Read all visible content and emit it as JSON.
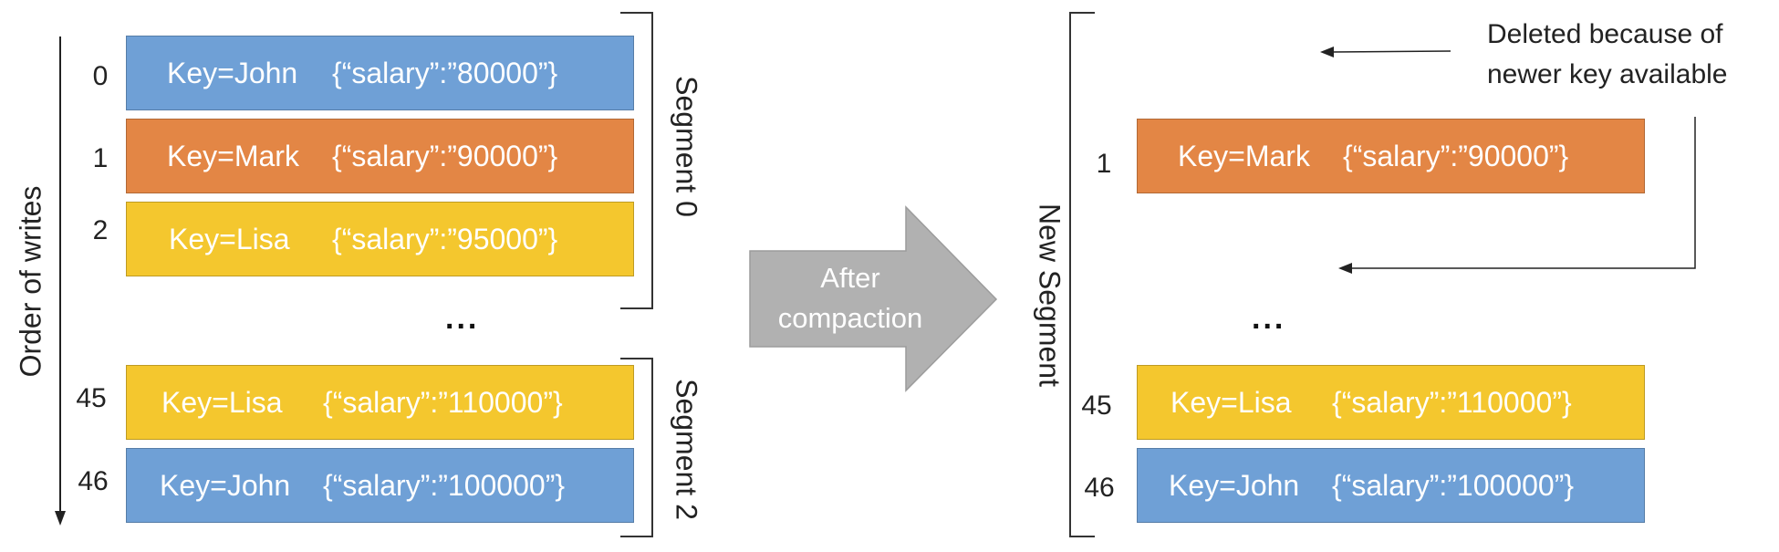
{
  "colors": {
    "blue": "#6fa0d6",
    "orange": "#e38645",
    "yellow": "#f4c72e",
    "arrow_gray": "#b1b1b1"
  },
  "axis_label": "Order of writes",
  "left": {
    "segment0_label": "Segment 0",
    "segment2_label": "Segment 2",
    "ellipsis": "...",
    "records": [
      {
        "index": "0",
        "key": "Key=John",
        "value": "{“salary”:”80000”}",
        "color": "blue"
      },
      {
        "index": "1",
        "key": "Key=Mark",
        "value": "{“salary”:”90000”}",
        "color": "orange"
      },
      {
        "index": "2",
        "key": "Key=Lisa",
        "value": "{“salary”:”95000”}",
        "color": "yellow"
      },
      {
        "index": "45",
        "key": "Key=Lisa",
        "value": "{“salary”:”110000”}",
        "color": "yellow"
      },
      {
        "index": "46",
        "key": "Key=John",
        "value": "{“salary”:”100000”}",
        "color": "blue"
      }
    ]
  },
  "compaction_arrow": {
    "line1": "After",
    "line2": "compaction"
  },
  "right": {
    "segment_label": "New Segment",
    "ellipsis": "...",
    "note_line1": "Deleted because of",
    "note_line2": "newer key available",
    "records": [
      {
        "index": "1",
        "key": "Key=Mark",
        "value": "{“salary”:”90000”}",
        "color": "orange"
      },
      {
        "index": "45",
        "key": "Key=Lisa",
        "value": "{“salary”:”110000”}",
        "color": "yellow"
      },
      {
        "index": "46",
        "key": "Key=John",
        "value": "{“salary”:”100000”}",
        "color": "blue"
      }
    ]
  }
}
